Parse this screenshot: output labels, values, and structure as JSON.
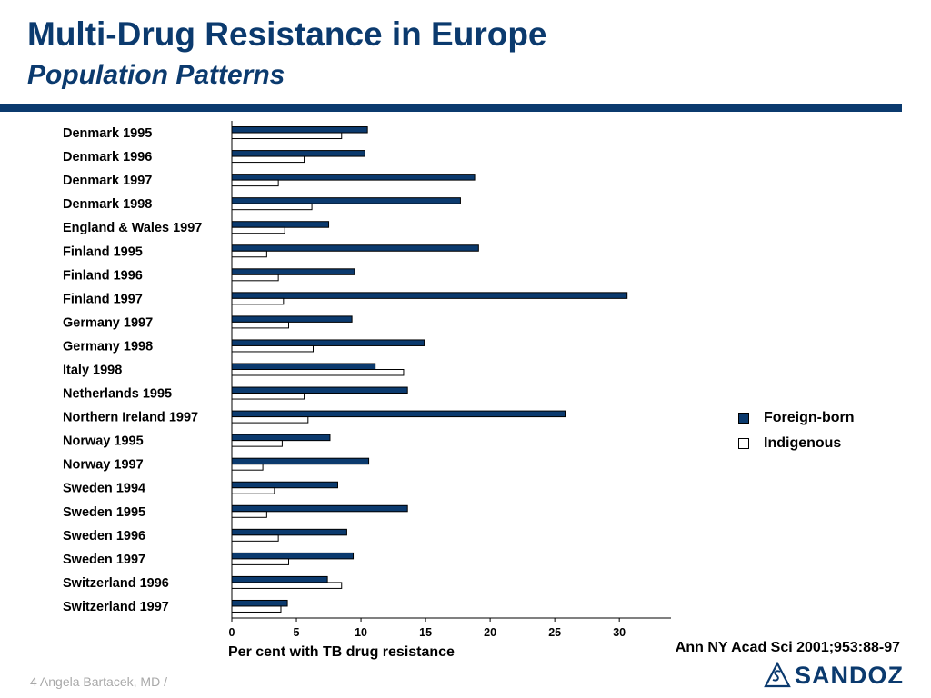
{
  "slide": {
    "title": "Multi-Drug Resistance in Europe",
    "subtitle": "Population Patterns",
    "citation": "Ann NY Acad Sci 2001;953:88-97",
    "footer": "4  Angela Bartacek, MD /",
    "logo_text": "SANDOZ",
    "accent_color": "#0b3a6e"
  },
  "chart_data": {
    "type": "bar",
    "orientation": "horizontal",
    "title": "",
    "xlabel": "Per cent with TB drug resistance",
    "ylabel": "",
    "xlim": [
      0,
      34
    ],
    "xticks": [
      0,
      5,
      10,
      15,
      20,
      25,
      30
    ],
    "grid": false,
    "legend_position": "right",
    "categories": [
      "Denmark 1995",
      "Denmark 1996",
      "Denmark 1997",
      "Denmark 1998",
      "England & Wales 1997",
      "Finland 1995",
      "Finland 1996",
      "Finland 1997",
      "Germany 1997",
      "Germany 1998",
      "Italy 1998",
      "Netherlands 1995",
      "Northern Ireland 1997",
      "Norway 1995",
      "Norway 1997",
      "Sweden 1994",
      "Sweden 1995",
      "Sweden 1996",
      "Sweden 1997",
      "Switzerland 1996",
      "Switzerland  1997"
    ],
    "series": [
      {
        "name": "Foreign-born",
        "color": "#0b3a6e",
        "values": [
          10.5,
          10.3,
          18.8,
          17.7,
          7.5,
          19.1,
          9.5,
          30.6,
          9.3,
          14.9,
          11.1,
          13.6,
          25.8,
          7.6,
          10.6,
          8.2,
          13.6,
          8.9,
          9.4,
          7.4,
          4.3
        ]
      },
      {
        "name": "Indigenous",
        "color": "#ffffff",
        "values": [
          8.5,
          5.6,
          3.6,
          6.2,
          4.1,
          2.7,
          3.6,
          4.0,
          4.4,
          6.3,
          13.3,
          5.6,
          5.9,
          3.9,
          2.4,
          3.3,
          2.7,
          3.6,
          4.4,
          8.5,
          3.8
        ]
      }
    ]
  }
}
